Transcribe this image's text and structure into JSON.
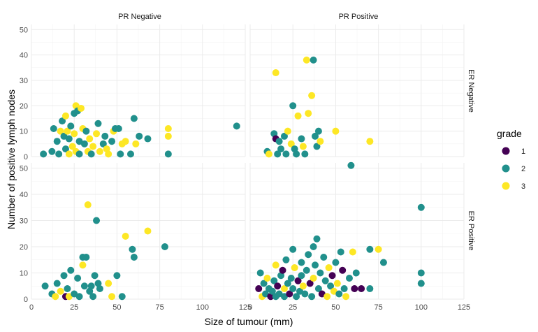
{
  "chart_data": {
    "type": "scatter",
    "title": "",
    "xlabel": "Size of tumour (mm)",
    "ylabel": "Number of positive lymph nodes",
    "xlim": [
      0,
      125
    ],
    "ylim": [
      0,
      52
    ],
    "x_ticks": [
      0,
      25,
      50,
      75,
      100,
      125
    ],
    "y_ticks": [
      0,
      10,
      20,
      30,
      40,
      50
    ],
    "grid": true,
    "facet_cols": [
      "PR Negative",
      "PR Positive"
    ],
    "facet_rows": [
      "ER Negative",
      "ER Positive"
    ],
    "legend": {
      "title": "grade",
      "position": "right",
      "entries": [
        {
          "label": "1",
          "color": "#440154"
        },
        {
          "label": "2",
          "color": "#21908C"
        },
        {
          "label": "3",
          "color": "#FDE725"
        }
      ]
    },
    "panels": [
      {
        "col": "PR Negative",
        "row": "ER Negative",
        "points": [
          {
            "x": 7,
            "y": 1,
            "grade": 2
          },
          {
            "x": 12,
            "y": 2,
            "grade": 2
          },
          {
            "x": 13,
            "y": 11,
            "grade": 2
          },
          {
            "x": 15,
            "y": 6,
            "grade": 2
          },
          {
            "x": 16,
            "y": 1,
            "grade": 2
          },
          {
            "x": 17,
            "y": 10,
            "grade": 3
          },
          {
            "x": 18,
            "y": 14,
            "grade": 2
          },
          {
            "x": 19,
            "y": 8,
            "grade": 2
          },
          {
            "x": 20,
            "y": 16,
            "grade": 3
          },
          {
            "x": 20,
            "y": 3,
            "grade": 2
          },
          {
            "x": 21,
            "y": 10,
            "grade": 3
          },
          {
            "x": 22,
            "y": 7,
            "grade": 2
          },
          {
            "x": 22,
            "y": 1,
            "grade": 3
          },
          {
            "x": 23,
            "y": 12,
            "grade": 2
          },
          {
            "x": 24,
            "y": 4,
            "grade": 3
          },
          {
            "x": 25,
            "y": 17,
            "grade": 2
          },
          {
            "x": 25,
            "y": 9,
            "grade": 3
          },
          {
            "x": 26,
            "y": 20,
            "grade": 3
          },
          {
            "x": 26,
            "y": 2,
            "grade": 3
          },
          {
            "x": 27,
            "y": 18,
            "grade": 2
          },
          {
            "x": 28,
            "y": 6,
            "grade": 2
          },
          {
            "x": 28,
            "y": 1,
            "grade": 2
          },
          {
            "x": 29,
            "y": 19,
            "grade": 3
          },
          {
            "x": 30,
            "y": 11,
            "grade": 3
          },
          {
            "x": 31,
            "y": 5,
            "grade": 2
          },
          {
            "x": 32,
            "y": 10,
            "grade": 2
          },
          {
            "x": 33,
            "y": 2,
            "grade": 3
          },
          {
            "x": 34,
            "y": 7,
            "grade": 3
          },
          {
            "x": 35,
            "y": 1,
            "grade": 2
          },
          {
            "x": 36,
            "y": 4,
            "grade": 3
          },
          {
            "x": 38,
            "y": 9,
            "grade": 3
          },
          {
            "x": 39,
            "y": 13,
            "grade": 2
          },
          {
            "x": 40,
            "y": 2,
            "grade": 3
          },
          {
            "x": 42,
            "y": 5,
            "grade": 2
          },
          {
            "x": 43,
            "y": 8,
            "grade": 2
          },
          {
            "x": 44,
            "y": 3,
            "grade": 3
          },
          {
            "x": 45,
            "y": 1,
            "grade": 3
          },
          {
            "x": 47,
            "y": 6,
            "grade": 2
          },
          {
            "x": 48,
            "y": 10,
            "grade": 3
          },
          {
            "x": 49,
            "y": 11,
            "grade": 2
          },
          {
            "x": 51,
            "y": 11,
            "grade": 2
          },
          {
            "x": 52,
            "y": 1,
            "grade": 2
          },
          {
            "x": 53,
            "y": 5,
            "grade": 3
          },
          {
            "x": 55,
            "y": 6,
            "grade": 3
          },
          {
            "x": 58,
            "y": 1,
            "grade": 2
          },
          {
            "x": 60,
            "y": 15,
            "grade": 2
          },
          {
            "x": 61,
            "y": 5,
            "grade": 3
          },
          {
            "x": 63,
            "y": 8,
            "grade": 2
          },
          {
            "x": 68,
            "y": 7,
            "grade": 2
          },
          {
            "x": 80,
            "y": 11,
            "grade": 3
          },
          {
            "x": 80,
            "y": 8,
            "grade": 3
          },
          {
            "x": 80,
            "y": 1,
            "grade": 2
          },
          {
            "x": 120,
            "y": 12,
            "grade": 2
          }
        ]
      },
      {
        "col": "PR Positive",
        "row": "ER Negative",
        "points": [
          {
            "x": 10,
            "y": 2,
            "grade": 2
          },
          {
            "x": 11,
            "y": 1,
            "grade": 3
          },
          {
            "x": 14,
            "y": 9,
            "grade": 2
          },
          {
            "x": 15,
            "y": 7,
            "grade": 1
          },
          {
            "x": 15,
            "y": 33,
            "grade": 3
          },
          {
            "x": 16,
            "y": 1,
            "grade": 2
          },
          {
            "x": 17,
            "y": 6,
            "grade": 2
          },
          {
            "x": 18,
            "y": 3,
            "grade": 2
          },
          {
            "x": 20,
            "y": 8,
            "grade": 2
          },
          {
            "x": 21,
            "y": 1,
            "grade": 2
          },
          {
            "x": 22,
            "y": 10,
            "grade": 3
          },
          {
            "x": 24,
            "y": 5,
            "grade": 3
          },
          {
            "x": 25,
            "y": 20,
            "grade": 2
          },
          {
            "x": 26,
            "y": 3,
            "grade": 2
          },
          {
            "x": 27,
            "y": 1,
            "grade": 2
          },
          {
            "x": 28,
            "y": 16,
            "grade": 3
          },
          {
            "x": 30,
            "y": 7,
            "grade": 2
          },
          {
            "x": 31,
            "y": 4,
            "grade": 3
          },
          {
            "x": 32,
            "y": 1,
            "grade": 2
          },
          {
            "x": 33,
            "y": 38,
            "grade": 3
          },
          {
            "x": 34,
            "y": 17,
            "grade": 3
          },
          {
            "x": 36,
            "y": 24,
            "grade": 3
          },
          {
            "x": 37,
            "y": 38,
            "grade": 2
          },
          {
            "x": 38,
            "y": 8,
            "grade": 2
          },
          {
            "x": 39,
            "y": 4,
            "grade": 2
          },
          {
            "x": 40,
            "y": 10,
            "grade": 2
          },
          {
            "x": 41,
            "y": 6,
            "grade": 3
          },
          {
            "x": 50,
            "y": 10,
            "grade": 3
          },
          {
            "x": 70,
            "y": 6,
            "grade": 3
          }
        ]
      },
      {
        "col": "PR Negative",
        "row": "ER Positive",
        "points": [
          {
            "x": 8,
            "y": 5,
            "grade": 2
          },
          {
            "x": 12,
            "y": 2,
            "grade": 2
          },
          {
            "x": 14,
            "y": 1,
            "grade": 3
          },
          {
            "x": 15,
            "y": 6,
            "grade": 2
          },
          {
            "x": 17,
            "y": 3,
            "grade": 3
          },
          {
            "x": 19,
            "y": 9,
            "grade": 2
          },
          {
            "x": 20,
            "y": 1,
            "grade": 1
          },
          {
            "x": 21,
            "y": 4,
            "grade": 2
          },
          {
            "x": 22,
            "y": 1,
            "grade": 3
          },
          {
            "x": 23,
            "y": 11,
            "grade": 2
          },
          {
            "x": 25,
            "y": 2,
            "grade": 2
          },
          {
            "x": 27,
            "y": 8,
            "grade": 2
          },
          {
            "x": 28,
            "y": 1,
            "grade": 2
          },
          {
            "x": 30,
            "y": 13,
            "grade": 3
          },
          {
            "x": 30,
            "y": 16,
            "grade": 2
          },
          {
            "x": 31,
            "y": 5,
            "grade": 2
          },
          {
            "x": 32,
            "y": 16,
            "grade": 2
          },
          {
            "x": 33,
            "y": 36,
            "grade": 3
          },
          {
            "x": 34,
            "y": 3,
            "grade": 2
          },
          {
            "x": 35,
            "y": 5,
            "grade": 2
          },
          {
            "x": 36,
            "y": 1,
            "grade": 2
          },
          {
            "x": 37,
            "y": 9,
            "grade": 2
          },
          {
            "x": 38,
            "y": 30,
            "grade": 2
          },
          {
            "x": 39,
            "y": 6,
            "grade": 2
          },
          {
            "x": 40,
            "y": 4,
            "grade": 2
          },
          {
            "x": 45,
            "y": 6,
            "grade": 3
          },
          {
            "x": 47,
            "y": 1,
            "grade": 3
          },
          {
            "x": 50,
            "y": 9,
            "grade": 2
          },
          {
            "x": 53,
            "y": 1,
            "grade": 2
          },
          {
            "x": 55,
            "y": 24,
            "grade": 3
          },
          {
            "x": 59,
            "y": 19,
            "grade": 2
          },
          {
            "x": 60,
            "y": 16,
            "grade": 2
          },
          {
            "x": 68,
            "y": 26,
            "grade": 3
          },
          {
            "x": 78,
            "y": 20,
            "grade": 2
          }
        ]
      },
      {
        "col": "PR Positive",
        "row": "ER Positive",
        "points": [
          {
            "x": 5,
            "y": 4,
            "grade": 1
          },
          {
            "x": 6,
            "y": 10,
            "grade": 2
          },
          {
            "x": 7,
            "y": 1,
            "grade": 3
          },
          {
            "x": 8,
            "y": 6,
            "grade": 2
          },
          {
            "x": 9,
            "y": 2,
            "grade": 2
          },
          {
            "x": 10,
            "y": 8,
            "grade": 3
          },
          {
            "x": 11,
            "y": 4,
            "grade": 2
          },
          {
            "x": 12,
            "y": 1,
            "grade": 1
          },
          {
            "x": 13,
            "y": 3,
            "grade": 2
          },
          {
            "x": 14,
            "y": 7,
            "grade": 2
          },
          {
            "x": 15,
            "y": 13,
            "grade": 3
          },
          {
            "x": 15,
            "y": 1,
            "grade": 2
          },
          {
            "x": 16,
            "y": 5,
            "grade": 1
          },
          {
            "x": 17,
            "y": 2,
            "grade": 2
          },
          {
            "x": 18,
            "y": 9,
            "grade": 2
          },
          {
            "x": 19,
            "y": 11,
            "grade": 1
          },
          {
            "x": 20,
            "y": 4,
            "grade": 3
          },
          {
            "x": 20,
            "y": 1,
            "grade": 2
          },
          {
            "x": 21,
            "y": 15,
            "grade": 2
          },
          {
            "x": 22,
            "y": 6,
            "grade": 2
          },
          {
            "x": 23,
            "y": 2,
            "grade": 1
          },
          {
            "x": 24,
            "y": 8,
            "grade": 2
          },
          {
            "x": 25,
            "y": 19,
            "grade": 2
          },
          {
            "x": 25,
            "y": 4,
            "grade": 2
          },
          {
            "x": 26,
            "y": 12,
            "grade": 3
          },
          {
            "x": 27,
            "y": 1,
            "grade": 2
          },
          {
            "x": 28,
            "y": 7,
            "grade": 1
          },
          {
            "x": 29,
            "y": 3,
            "grade": 2
          },
          {
            "x": 30,
            "y": 14,
            "grade": 2
          },
          {
            "x": 30,
            "y": 9,
            "grade": 2
          },
          {
            "x": 31,
            "y": 5,
            "grade": 3
          },
          {
            "x": 32,
            "y": 2,
            "grade": 2
          },
          {
            "x": 33,
            "y": 11,
            "grade": 2
          },
          {
            "x": 34,
            "y": 17,
            "grade": 2
          },
          {
            "x": 35,
            "y": 6,
            "grade": 1
          },
          {
            "x": 36,
            "y": 1,
            "grade": 2
          },
          {
            "x": 37,
            "y": 20,
            "grade": 2
          },
          {
            "x": 37,
            "y": 8,
            "grade": 3
          },
          {
            "x": 38,
            "y": 13,
            "grade": 2
          },
          {
            "x": 39,
            "y": 23,
            "grade": 2
          },
          {
            "x": 40,
            "y": 4,
            "grade": 2
          },
          {
            "x": 41,
            "y": 10,
            "grade": 2
          },
          {
            "x": 42,
            "y": 2,
            "grade": 1
          },
          {
            "x": 43,
            "y": 16,
            "grade": 2
          },
          {
            "x": 44,
            "y": 7,
            "grade": 2
          },
          {
            "x": 45,
            "y": 1,
            "grade": 3
          },
          {
            "x": 46,
            "y": 12,
            "grade": 3
          },
          {
            "x": 47,
            "y": 5,
            "grade": 2
          },
          {
            "x": 48,
            "y": 9,
            "grade": 1
          },
          {
            "x": 49,
            "y": 3,
            "grade": 3
          },
          {
            "x": 50,
            "y": 14,
            "grade": 2
          },
          {
            "x": 51,
            "y": 6,
            "grade": 3
          },
          {
            "x": 52,
            "y": 2,
            "grade": 2
          },
          {
            "x": 53,
            "y": 18,
            "grade": 2
          },
          {
            "x": 54,
            "y": 11,
            "grade": 1
          },
          {
            "x": 55,
            "y": 4,
            "grade": 2
          },
          {
            "x": 56,
            "y": 1,
            "grade": 3
          },
          {
            "x": 58,
            "y": 8,
            "grade": 2
          },
          {
            "x": 59,
            "y": 51,
            "grade": 2
          },
          {
            "x": 60,
            "y": 18,
            "grade": 3
          },
          {
            "x": 61,
            "y": 4,
            "grade": 1
          },
          {
            "x": 62,
            "y": 10,
            "grade": 2
          },
          {
            "x": 65,
            "y": 4,
            "grade": 1
          },
          {
            "x": 70,
            "y": 19,
            "grade": 2
          },
          {
            "x": 70,
            "y": 4,
            "grade": 2
          },
          {
            "x": 75,
            "y": 19,
            "grade": 3
          },
          {
            "x": 78,
            "y": 14,
            "grade": 2
          },
          {
            "x": 100,
            "y": 35,
            "grade": 2
          },
          {
            "x": 100,
            "y": 10,
            "grade": 2
          },
          {
            "x": 100,
            "y": 6,
            "grade": 2
          }
        ]
      }
    ]
  }
}
